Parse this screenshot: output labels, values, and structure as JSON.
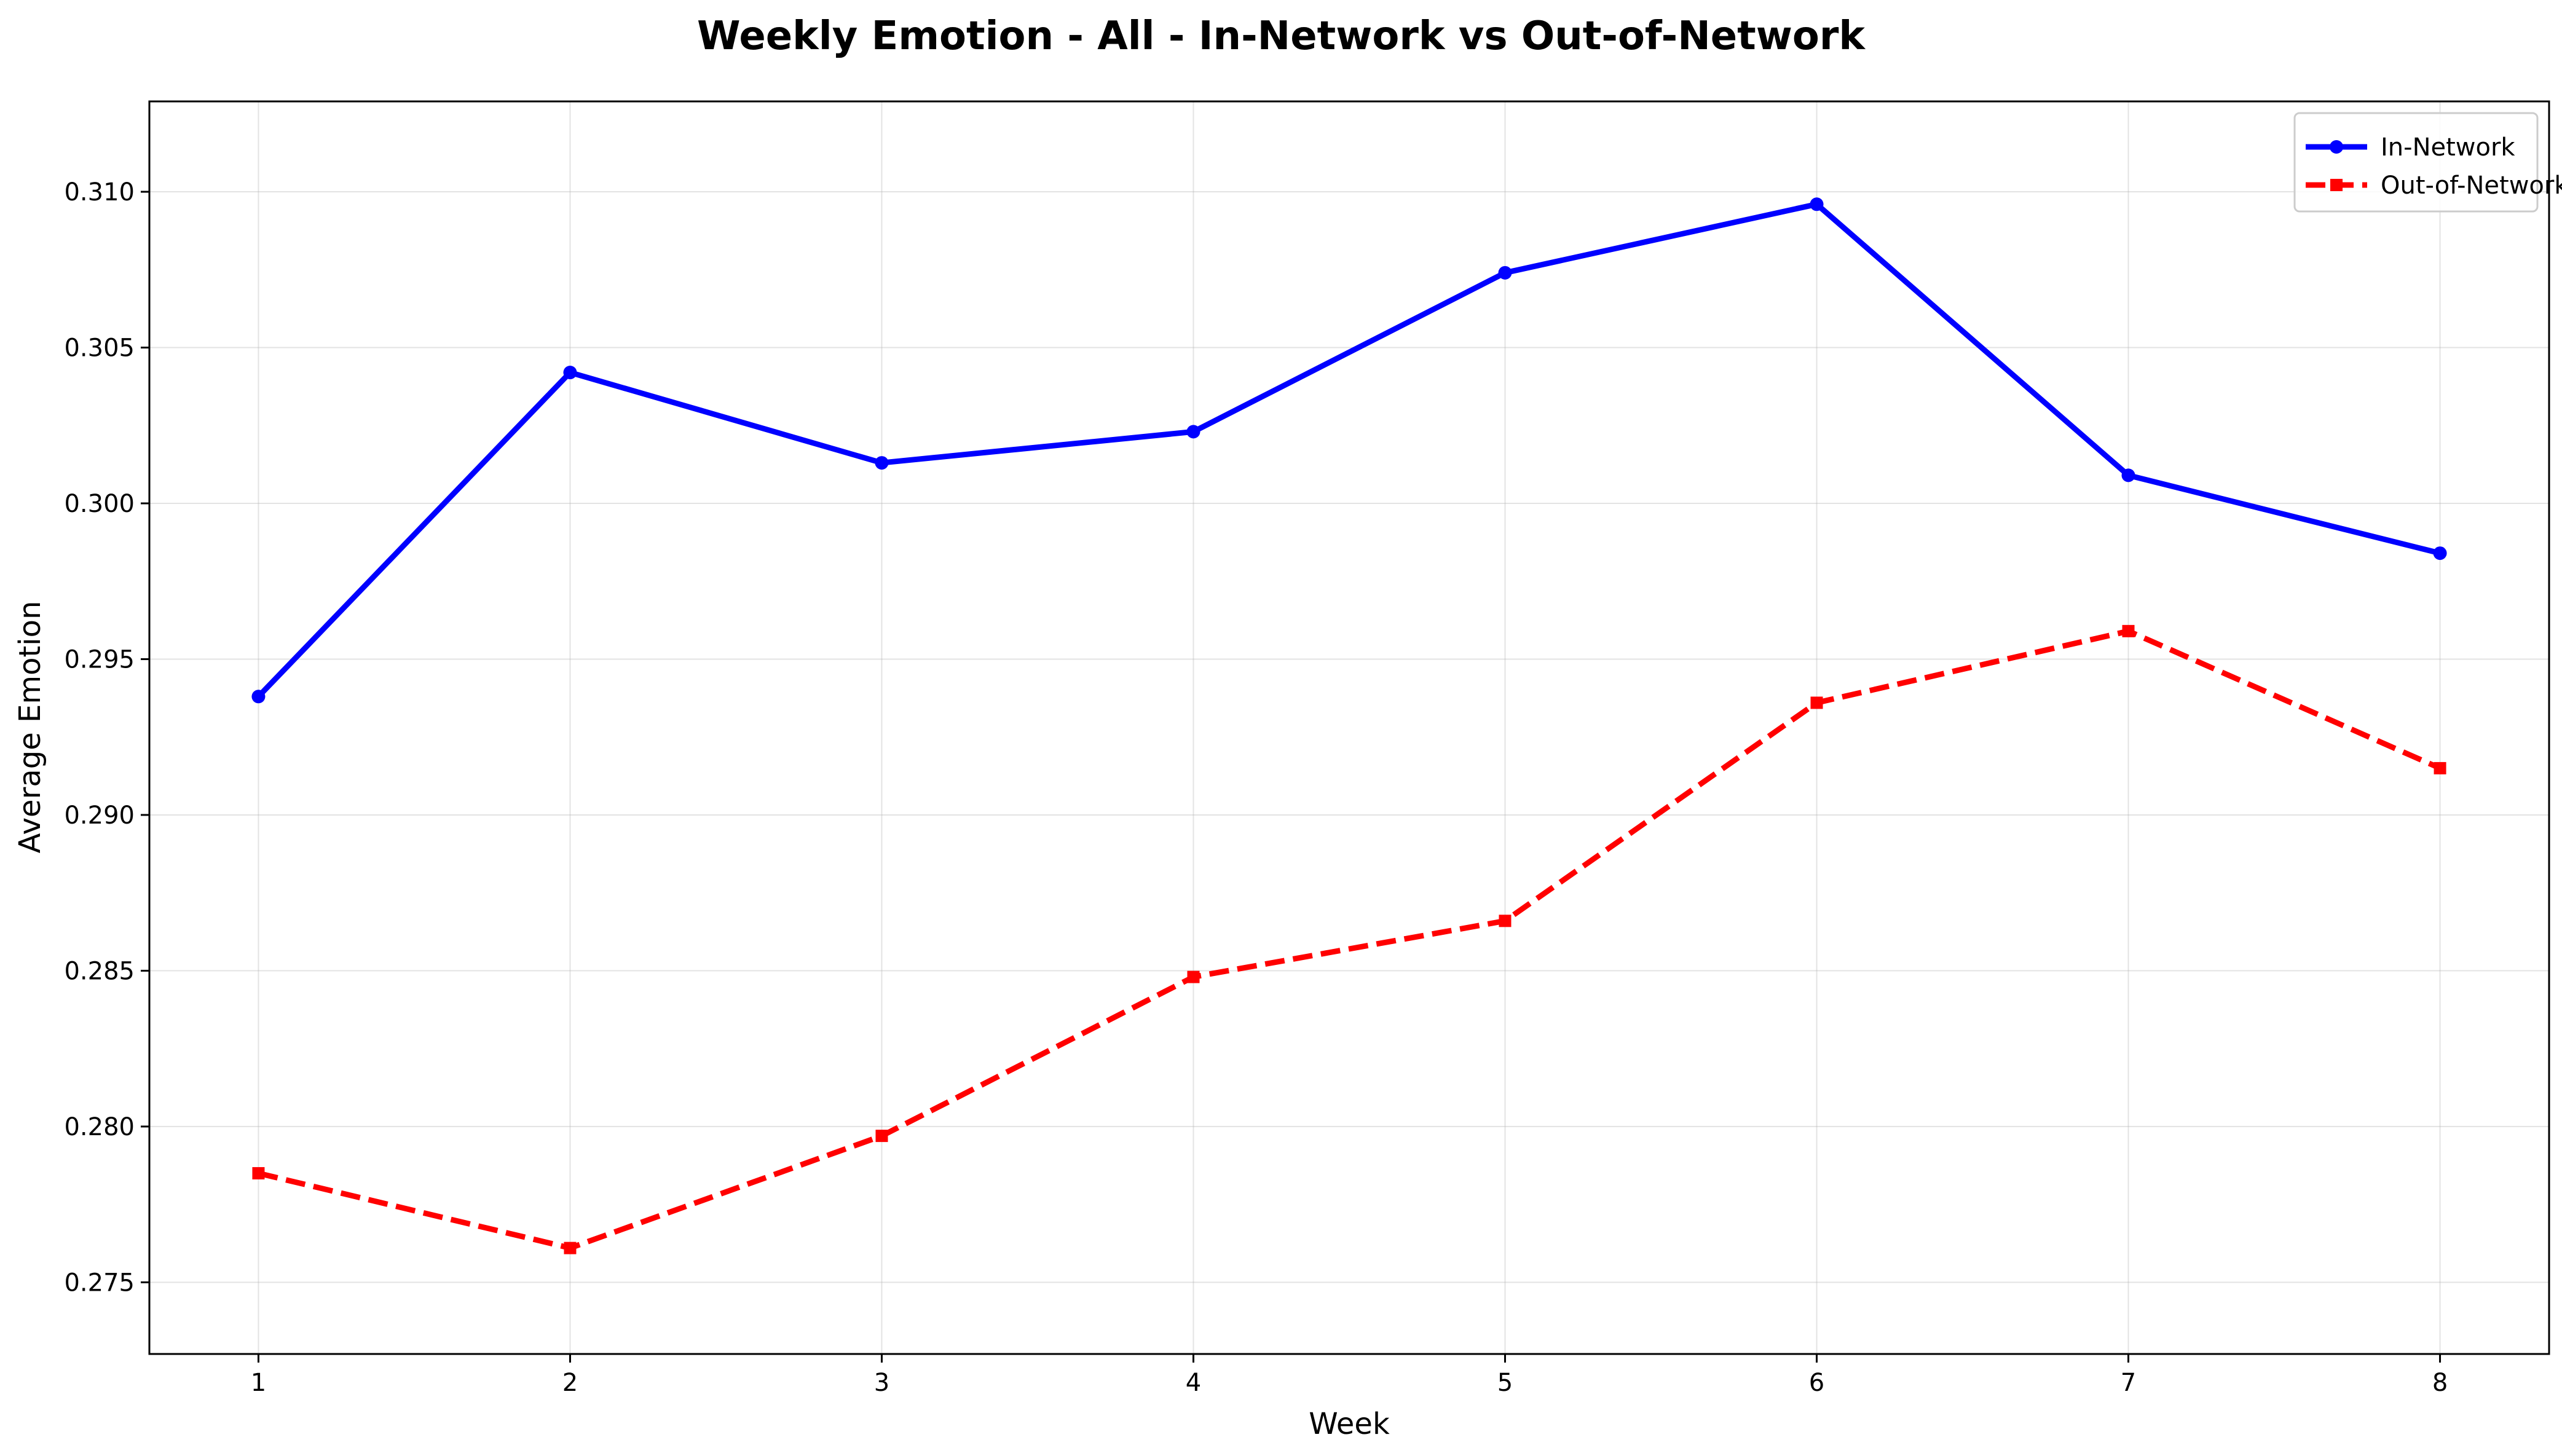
{
  "chart_data": {
    "type": "line",
    "title": "Weekly Emotion - All - In-Network vs Out-of-Network",
    "xlabel": "Week",
    "ylabel": "Average Emotion",
    "x": [
      1,
      2,
      3,
      4,
      5,
      6,
      7,
      8
    ],
    "x_tick_labels": [
      "1",
      "2",
      "3",
      "4",
      "5",
      "6",
      "7",
      "8"
    ],
    "xlim": [
      0.65,
      8.35
    ],
    "ylim": [
      0.2727,
      0.3129
    ],
    "y_ticks": [
      0.275,
      0.28,
      0.285,
      0.29,
      0.295,
      0.3,
      0.305,
      0.31
    ],
    "y_tick_labels": [
      "0.275",
      "0.280",
      "0.285",
      "0.290",
      "0.295",
      "0.300",
      "0.305",
      "0.310"
    ],
    "grid": true,
    "legend_position": "top-right",
    "series": [
      {
        "name": "In-Network",
        "color": "#0000ff",
        "line_style": "solid",
        "marker": "circle",
        "values": [
          0.2938,
          0.3042,
          0.3013,
          0.3023,
          0.3074,
          0.3096,
          0.3009,
          0.2984
        ]
      },
      {
        "name": "Out-of-Network",
        "color": "#ff0000",
        "line_style": "dashed",
        "marker": "square",
        "values": [
          0.2785,
          0.2761,
          0.2797,
          0.2848,
          0.2866,
          0.2936,
          0.2959,
          0.2915
        ]
      }
    ]
  }
}
